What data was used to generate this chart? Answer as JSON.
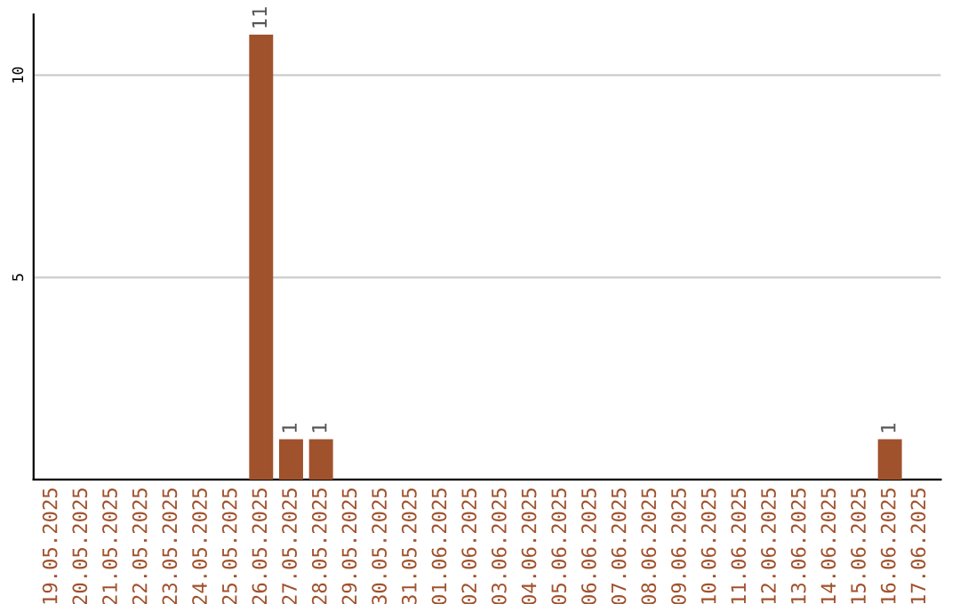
{
  "chart_data": {
    "type": "bar",
    "categories": [
      "19.05.2025",
      "20.05.2025",
      "21.05.2025",
      "22.05.2025",
      "23.05.2025",
      "24.05.2025",
      "25.05.2025",
      "26.05.2025",
      "27.05.2025",
      "28.05.2025",
      "29.05.2025",
      "30.05.2025",
      "31.05.2025",
      "01.06.2025",
      "02.06.2025",
      "03.06.2025",
      "04.06.2025",
      "05.06.2025",
      "06.06.2025",
      "07.06.2025",
      "08.06.2025",
      "09.06.2025",
      "10.06.2025",
      "11.06.2025",
      "12.06.2025",
      "13.06.2025",
      "14.06.2025",
      "15.06.2025",
      "16.06.2025",
      "17.06.2025"
    ],
    "values": [
      0,
      0,
      0,
      0,
      0,
      0,
      0,
      11,
      1,
      1,
      0,
      0,
      0,
      0,
      0,
      0,
      0,
      0,
      0,
      0,
      0,
      0,
      0,
      0,
      0,
      0,
      0,
      0,
      1,
      0
    ],
    "value_labels": [
      null,
      null,
      null,
      null,
      null,
      null,
      null,
      "11",
      "1",
      "1",
      null,
      null,
      null,
      null,
      null,
      null,
      null,
      null,
      null,
      null,
      null,
      null,
      null,
      null,
      null,
      null,
      null,
      null,
      "1",
      null
    ],
    "color": "#a0522d",
    "ylim": [
      0,
      11.5
    ],
    "yticks": [
      5,
      10
    ],
    "grid": "y"
  }
}
